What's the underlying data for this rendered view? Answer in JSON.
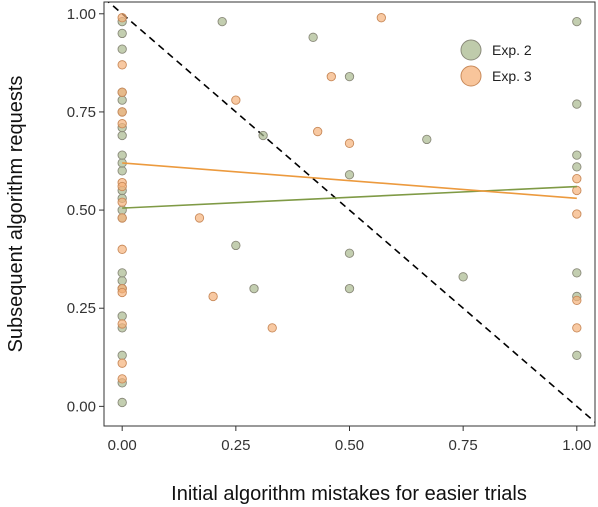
{
  "chart_data": {
    "type": "scatter",
    "xlabel": "Initial algorithm mistakes for easier trials",
    "ylabel": "Subsequent algorithm requests",
    "xlim": [
      -0.04,
      1.04
    ],
    "ylim": [
      -0.05,
      1.03
    ],
    "x_ticks": [
      "0.00",
      "0.25",
      "0.50",
      "0.75",
      "1.00"
    ],
    "y_ticks": [
      "0.00",
      "0.25",
      "0.50",
      "0.75",
      "1.00"
    ],
    "legend_position": "top-right",
    "grid": false,
    "reference_line": {
      "style": "dashed",
      "color": "#000000",
      "from": [
        0,
        1
      ],
      "to": [
        1,
        0
      ]
    },
    "series": [
      {
        "name": "Exp. 2",
        "color": "#a9b98f",
        "stroke": "#8a8a7a",
        "fit_color": "#7f9a45",
        "fit": {
          "x": [
            0,
            1
          ],
          "y": [
            0.505,
            0.56
          ]
        },
        "points": [
          [
            0,
            0.01
          ],
          [
            0,
            0.06
          ],
          [
            0,
            0.13
          ],
          [
            0,
            0.2
          ],
          [
            0,
            0.23
          ],
          [
            0,
            0.3
          ],
          [
            0,
            0.32
          ],
          [
            0,
            0.34
          ],
          [
            0,
            0.48
          ],
          [
            0,
            0.5
          ],
          [
            0,
            0.53
          ],
          [
            0,
            0.55
          ],
          [
            0,
            0.6
          ],
          [
            0,
            0.62
          ],
          [
            0,
            0.64
          ],
          [
            0,
            0.69
          ],
          [
            0,
            0.71
          ],
          [
            0,
            0.75
          ],
          [
            0,
            0.78
          ],
          [
            0,
            0.8
          ],
          [
            0,
            0.91
          ],
          [
            0,
            0.95
          ],
          [
            0,
            0.98
          ],
          [
            0.22,
            0.98
          ],
          [
            0.25,
            0.41
          ],
          [
            0.29,
            0.3
          ],
          [
            0.31,
            0.69
          ],
          [
            0.42,
            0.94
          ],
          [
            0.5,
            0.84
          ],
          [
            0.5,
            0.59
          ],
          [
            0.5,
            0.39
          ],
          [
            0.5,
            0.3
          ],
          [
            0.67,
            0.68
          ],
          [
            0.75,
            0.33
          ],
          [
            1.0,
            0.98
          ],
          [
            1.0,
            0.77
          ],
          [
            1.0,
            0.64
          ],
          [
            1.0,
            0.61
          ],
          [
            1.0,
            0.34
          ],
          [
            1.0,
            0.28
          ],
          [
            1.0,
            0.13
          ]
        ]
      },
      {
        "name": "Exp. 3",
        "color": "#f5b27a",
        "stroke": "#c98a5a",
        "fit_color": "#ec9a3e",
        "fit": {
          "x": [
            0,
            1
          ],
          "y": [
            0.62,
            0.53
          ]
        },
        "points": [
          [
            0,
            0.99
          ],
          [
            0,
            0.87
          ],
          [
            0,
            0.8
          ],
          [
            0,
            0.75
          ],
          [
            0,
            0.72
          ],
          [
            0,
            0.57
          ],
          [
            0,
            0.56
          ],
          [
            0,
            0.52
          ],
          [
            0,
            0.48
          ],
          [
            0,
            0.4
          ],
          [
            0,
            0.3
          ],
          [
            0,
            0.29
          ],
          [
            0,
            0.21
          ],
          [
            0,
            0.11
          ],
          [
            0,
            0.07
          ],
          [
            0.17,
            0.48
          ],
          [
            0.2,
            0.28
          ],
          [
            0.25,
            0.78
          ],
          [
            0.33,
            0.2
          ],
          [
            0.43,
            0.7
          ],
          [
            0.46,
            0.84
          ],
          [
            0.5,
            0.67
          ],
          [
            0.57,
            0.99
          ],
          [
            1.0,
            0.58
          ],
          [
            1.0,
            0.55
          ],
          [
            1.0,
            0.49
          ],
          [
            1.0,
            0.27
          ],
          [
            1.0,
            0.2
          ]
        ]
      }
    ]
  }
}
